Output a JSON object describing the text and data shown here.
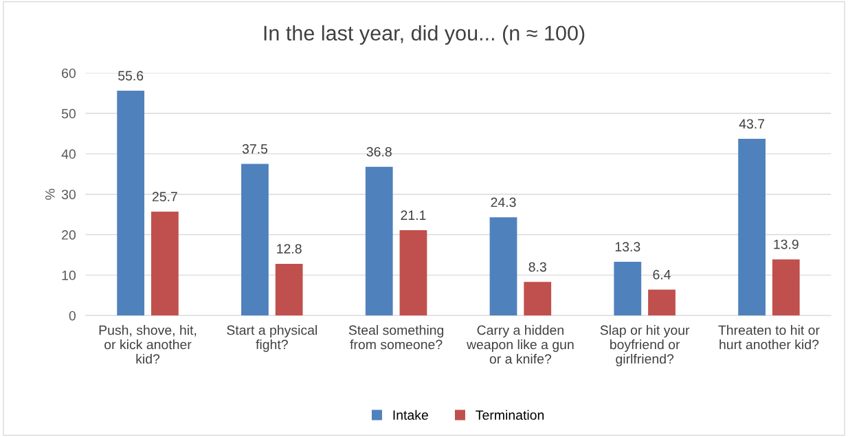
{
  "chart_data": {
    "type": "bar",
    "title": "In the last year, did you... (n ≈ 100)",
    "ylabel": "%",
    "categories": [
      "Push, shove, hit,\nor kick another\nkid?",
      "Start a physical\nfight?",
      "Steal something\nfrom someone?",
      "Carry a hidden\nweapon like a gun\nor a knife?",
      "Slap or hit your\nboyfriend or\ngirlfriend?",
      "Threaten to hit or\nhurt another kid?"
    ],
    "series": [
      {
        "name": "Intake",
        "color": "#4f81bd",
        "values": [
          55.6,
          37.5,
          36.8,
          24.3,
          13.3,
          43.7
        ]
      },
      {
        "name": "Termination",
        "color": "#c0504d",
        "values": [
          25.7,
          12.8,
          21.1,
          8.3,
          6.4,
          13.9
        ]
      }
    ],
    "ylim": [
      0,
      60
    ],
    "yticks": [
      0,
      10,
      20,
      30,
      40,
      50,
      60
    ],
    "grid": "y",
    "legend": "bottom",
    "data_labels": true
  }
}
